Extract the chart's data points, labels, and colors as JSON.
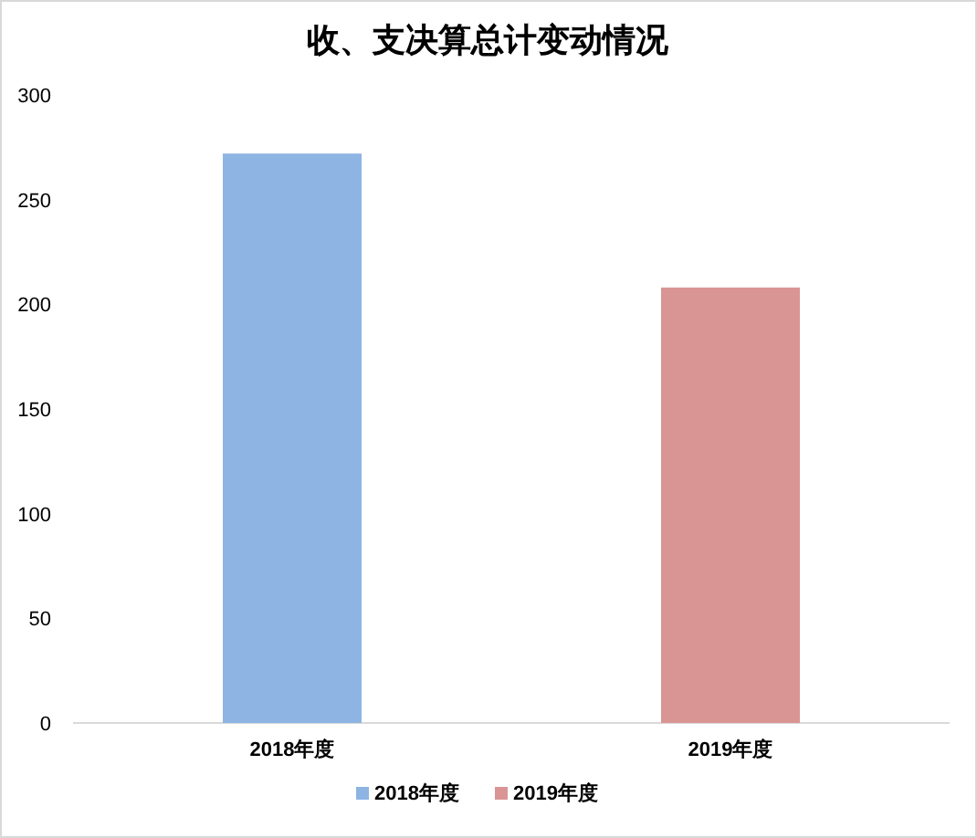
{
  "chart_data": {
    "type": "bar",
    "title": "收、支决算总计变动情况",
    "categories": [
      "2018年度",
      "2019年度"
    ],
    "series": [
      {
        "name": "2018年度",
        "color": "#8eb4e3",
        "values": [
          272,
          null
        ]
      },
      {
        "name": "2019年度",
        "color": "#d99594",
        "values": [
          null,
          208
        ]
      }
    ],
    "ylim": [
      0,
      300
    ],
    "yticks": [
      0,
      50,
      100,
      150,
      200,
      250,
      300
    ],
    "grid": false,
    "legend": "bottom"
  }
}
